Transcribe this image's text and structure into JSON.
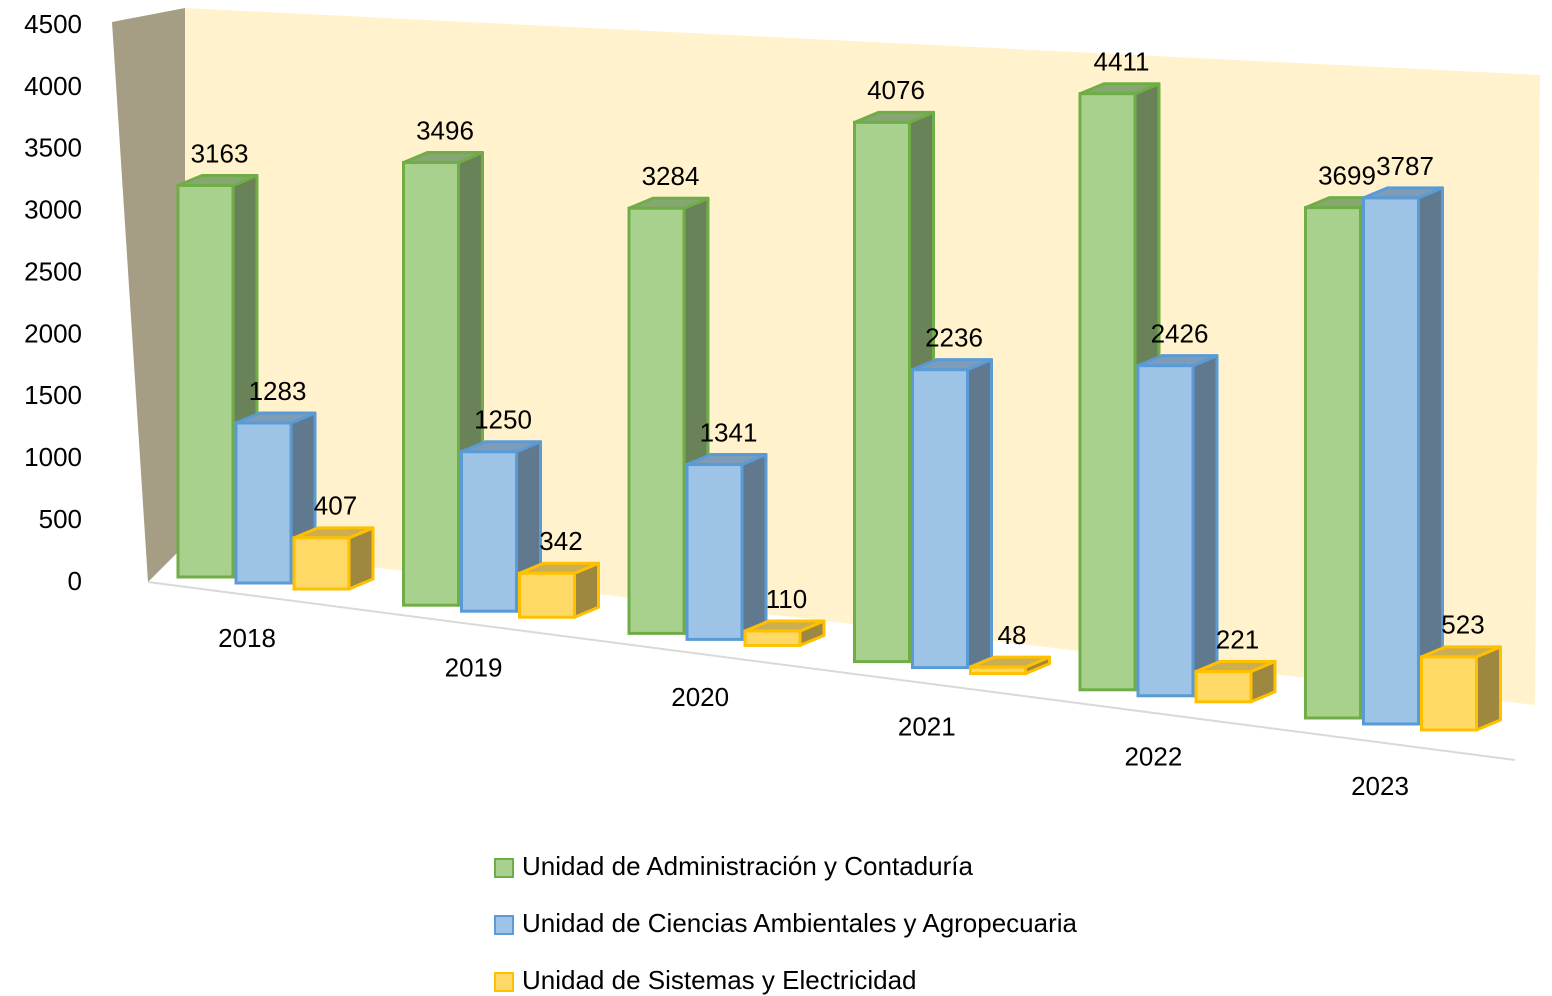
{
  "chart_data": {
    "type": "bar3d",
    "categories": [
      "2018",
      "2019",
      "2020",
      "2021",
      "2022",
      "2023"
    ],
    "series": [
      {
        "name": "Unidad de Administración y Contaduría",
        "color": "#a9d18e",
        "stroke": "#70ad47",
        "values": [
          3163,
          3496,
          3284,
          4076,
          4411,
          3699
        ]
      },
      {
        "name": "Unidad de Ciencias Ambientales y Agropecuaria",
        "color": "#9dc3e6",
        "stroke": "#5b9bd5",
        "values": [
          1283,
          1250,
          1341,
          2236,
          2426,
          3787
        ]
      },
      {
        "name": "Unidad de Sistemas y Electricidad",
        "color": "#ffd966",
        "stroke": "#ffc000",
        "values": [
          407,
          342,
          110,
          48,
          221,
          523
        ]
      }
    ],
    "ylim": [
      0,
      4500
    ],
    "yticks": [
      0,
      500,
      1000,
      1500,
      2000,
      2500,
      3000,
      3500,
      4000,
      4500
    ]
  }
}
